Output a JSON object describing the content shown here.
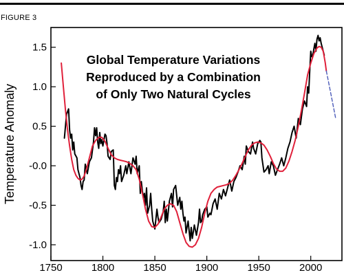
{
  "figure_label": "FIGURE 3",
  "chart_data": {
    "type": "line",
    "title_lines": [
      "Global Temperature Variations",
      "Reproduced by a Combination",
      "of Only Two Natural Cycles"
    ],
    "xlabel": "",
    "ylabel": "Temperature Anomaly",
    "xlim": [
      1750,
      2030
    ],
    "ylim": [
      -1.2,
      1.75
    ],
    "x_ticks": [
      1750,
      1800,
      1850,
      1900,
      1950,
      2000
    ],
    "y_ticks": [
      -1.0,
      -0.5,
      0.0,
      0.5,
      1.0,
      1.5
    ],
    "y_tick_labels": [
      "-1.0",
      "-0.5",
      "-0.0",
      "0.5",
      "1.0",
      "1.5"
    ],
    "grid": false,
    "series": [
      {
        "style": "observed",
        "color": "#000000",
        "x": [
          1763,
          1765,
          1767,
          1768,
          1769,
          1770,
          1771,
          1772,
          1773,
          1775,
          1776,
          1777,
          1778,
          1779,
          1780,
          1781,
          1782,
          1783,
          1785,
          1787,
          1789,
          1790,
          1791,
          1792,
          1793,
          1794,
          1795,
          1796,
          1797,
          1798,
          1799,
          1800,
          1802,
          1803,
          1804,
          1805,
          1807,
          1808,
          1810,
          1811,
          1812,
          1813,
          1814,
          1815,
          1816,
          1817,
          1818,
          1820,
          1822,
          1823,
          1825,
          1827,
          1829,
          1831,
          1832,
          1833,
          1835,
          1836,
          1837,
          1838,
          1839,
          1840,
          1841,
          1842,
          1843,
          1845,
          1846,
          1847,
          1848,
          1850,
          1852,
          1853,
          1854,
          1856,
          1858,
          1859,
          1860,
          1861,
          1862,
          1864,
          1866,
          1867,
          1868,
          1870,
          1872,
          1874,
          1875,
          1876,
          1877,
          1878,
          1879,
          1880,
          1882,
          1884,
          1885,
          1886,
          1888,
          1890,
          1892,
          1893,
          1894,
          1895,
          1896,
          1898,
          1900,
          1901,
          1903,
          1904,
          1906,
          1908,
          1910,
          1912,
          1914,
          1916,
          1918,
          1920,
          1922,
          1924,
          1926,
          1928,
          1930,
          1932,
          1934,
          1936,
          1937,
          1938,
          1940,
          1942,
          1944,
          1945,
          1947,
          1949,
          1951,
          1952,
          1953,
          1955,
          1957,
          1959,
          1960,
          1962,
          1964,
          1966,
          1968,
          1970,
          1972,
          1974,
          1976,
          1978,
          1980,
          1982,
          1984,
          1986,
          1988,
          1990,
          1992,
          1994,
          1996,
          1997,
          1998,
          1999,
          2000,
          2001,
          2002,
          2003,
          2004,
          2005,
          2006,
          2007,
          2008,
          2009,
          2010,
          2011,
          2012,
          2013
        ],
        "y": [
          0.35,
          0.65,
          0.72,
          0.45,
          0.35,
          0.4,
          0.2,
          0.3,
          0.15,
          0.1,
          -0.05,
          -0.1,
          -0.15,
          -0.25,
          -0.3,
          -0.2,
          -0.18,
          0.02,
          -0.1,
          0.05,
          0.1,
          0.2,
          0.3,
          0.48,
          0.38,
          0.48,
          0.3,
          0.22,
          0.42,
          0.28,
          0.33,
          0.25,
          0.4,
          0.38,
          0.28,
          0.12,
          0.08,
          0.18,
          0.2,
          -0.25,
          -0.3,
          -0.15,
          -0.2,
          -0.05,
          -0.1,
          0.0,
          -0.2,
          -0.12,
          0.0,
          -0.1,
          0.05,
          -0.1,
          0.1,
          0.02,
          0.12,
          -0.1,
          0.0,
          -0.35,
          -0.2,
          -0.32,
          -0.4,
          -0.35,
          -0.5,
          -0.28,
          -0.6,
          -0.5,
          -0.35,
          -0.55,
          -0.7,
          -0.8,
          -0.55,
          -0.65,
          -0.72,
          -0.68,
          -0.58,
          -0.45,
          -0.72,
          -0.55,
          -0.7,
          -0.45,
          -0.35,
          -0.52,
          -0.3,
          -0.25,
          -0.5,
          -0.4,
          -0.55,
          -0.45,
          -0.6,
          -0.7,
          -0.65,
          -0.85,
          -0.7,
          -0.95,
          -0.78,
          -0.92,
          -0.75,
          -0.88,
          -0.72,
          -0.55,
          -0.72,
          -0.7,
          -0.62,
          -0.55,
          -0.52,
          -0.65,
          -0.6,
          -0.62,
          -0.48,
          -0.42,
          -0.55,
          -0.35,
          -0.42,
          -0.3,
          -0.38,
          -0.28,
          -0.18,
          -0.32,
          -0.2,
          -0.15,
          -0.08,
          0.0,
          -0.05,
          0.12,
          0.02,
          0.25,
          0.18,
          0.15,
          0.3,
          0.22,
          0.15,
          0.28,
          0.32,
          0.3,
          0.1,
          -0.08,
          -0.05,
          0.0,
          -0.1,
          0.05,
          0.0,
          -0.12,
          -0.05,
          0.02,
          0.1,
          0.0,
          0.1,
          0.22,
          0.3,
          0.42,
          0.5,
          0.35,
          0.6,
          0.52,
          0.72,
          0.82,
          0.75,
          1.0,
          0.92,
          1.2,
          1.45,
          1.38,
          1.4,
          1.48,
          1.55,
          1.45,
          1.6,
          1.65,
          1.58,
          1.62,
          1.55,
          1.5,
          1.45,
          1.4
        ]
      },
      {
        "style": "model",
        "color": "#e0203a",
        "x": [
          1760,
          1762,
          1764,
          1766,
          1768,
          1770,
          1772,
          1774,
          1776,
          1778,
          1780,
          1782,
          1784,
          1786,
          1788,
          1790,
          1793,
          1796,
          1799,
          1802,
          1805,
          1808,
          1811,
          1814,
          1817,
          1820,
          1823,
          1826,
          1829,
          1832,
          1835,
          1838,
          1841,
          1844,
          1847,
          1850,
          1853,
          1856,
          1859,
          1862,
          1865,
          1868,
          1871,
          1874,
          1877,
          1880,
          1883,
          1886,
          1889,
          1892,
          1895,
          1898,
          1901,
          1904,
          1907,
          1910,
          1913,
          1916,
          1919,
          1922,
          1925,
          1928,
          1931,
          1934,
          1937,
          1940,
          1943,
          1946,
          1949,
          1952,
          1955,
          1958,
          1961,
          1964,
          1967,
          1970,
          1973,
          1976,
          1979,
          1982,
          1985,
          1988,
          1991,
          1994,
          1997,
          2000,
          2003,
          2006,
          2008,
          2010,
          2012,
          2014,
          2015
        ],
        "y": [
          1.3,
          1.0,
          0.7,
          0.45,
          0.25,
          0.08,
          -0.05,
          -0.12,
          -0.16,
          -0.18,
          -0.17,
          -0.13,
          -0.05,
          0.05,
          0.15,
          0.25,
          0.32,
          0.36,
          0.36,
          0.31,
          0.22,
          0.14,
          0.1,
          0.08,
          0.07,
          0.06,
          0.05,
          0.03,
          0.0,
          -0.05,
          -0.17,
          -0.35,
          -0.55,
          -0.7,
          -0.77,
          -0.78,
          -0.74,
          -0.65,
          -0.55,
          -0.5,
          -0.48,
          -0.5,
          -0.58,
          -0.72,
          -0.86,
          -0.97,
          -1.02,
          -1.03,
          -1.0,
          -0.92,
          -0.78,
          -0.6,
          -0.45,
          -0.35,
          -0.3,
          -0.27,
          -0.26,
          -0.25,
          -0.24,
          -0.22,
          -0.18,
          -0.12,
          -0.05,
          0.03,
          0.12,
          0.2,
          0.26,
          0.29,
          0.3,
          0.29,
          0.26,
          0.2,
          0.12,
          0.03,
          -0.04,
          -0.07,
          -0.07,
          -0.03,
          0.06,
          0.18,
          0.32,
          0.5,
          0.7,
          0.92,
          1.15,
          1.3,
          1.42,
          1.49,
          1.51,
          1.5,
          1.45,
          1.3,
          1.2
        ]
      },
      {
        "style": "projection",
        "color": "#4a5ab8",
        "x": [
          2015,
          2018,
          2021,
          2024
        ],
        "y": [
          1.2,
          1.0,
          0.8,
          0.6
        ]
      }
    ]
  }
}
